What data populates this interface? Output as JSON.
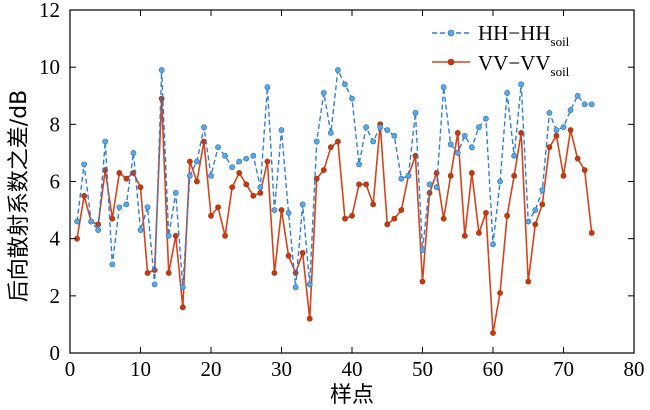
{
  "chart_data": {
    "type": "line",
    "xlabel": "样点",
    "ylabel": "后向散射系数之差/dB",
    "xlim": [
      0,
      80
    ],
    "ylim": [
      0,
      12
    ],
    "xticks": [
      0,
      10,
      20,
      30,
      40,
      50,
      60,
      70,
      80
    ],
    "yticks": [
      0,
      2,
      4,
      6,
      8,
      10,
      12
    ],
    "grid": false,
    "legend_position": "top-right",
    "x": [
      1,
      2,
      3,
      4,
      5,
      6,
      7,
      8,
      9,
      10,
      11,
      12,
      13,
      14,
      15,
      16,
      17,
      18,
      19,
      20,
      21,
      22,
      23,
      24,
      25,
      26,
      27,
      28,
      29,
      30,
      31,
      32,
      33,
      34,
      35,
      36,
      37,
      38,
      39,
      40,
      41,
      42,
      43,
      44,
      45,
      46,
      47,
      48,
      49,
      50,
      51,
      52,
      53,
      54,
      55,
      56,
      57,
      58,
      59,
      60,
      61,
      62,
      63,
      64,
      65,
      66,
      67,
      68,
      69,
      70,
      71,
      72,
      73,
      74
    ],
    "series": [
      {
        "name": "HH−HH",
        "name_sub": "soil",
        "color": "#2f7fd6",
        "marker_color": "#5aa9e0",
        "style": "dashed",
        "values": [
          4.6,
          6.6,
          4.6,
          4.3,
          7.4,
          3.1,
          5.1,
          5.2,
          7.0,
          4.3,
          5.1,
          2.4,
          9.9,
          4.1,
          5.6,
          2.3,
          6.2,
          6.7,
          7.9,
          6.2,
          7.2,
          6.9,
          6.5,
          6.7,
          6.8,
          6.9,
          5.8,
          9.3,
          5.0,
          7.8,
          4.9,
          2.3,
          5.2,
          2.4,
          7.4,
          9.1,
          7.7,
          9.9,
          9.4,
          8.9,
          6.6,
          7.9,
          7.4,
          7.9,
          7.8,
          7.6,
          6.1,
          6.2,
          8.4,
          3.6,
          5.9,
          5.8,
          9.3,
          7.3,
          7.0,
          7.6,
          7.2,
          7.9,
          8.2,
          3.8,
          6.0,
          9.1,
          6.9,
          9.4,
          4.6,
          5.0,
          5.7,
          8.4,
          7.8,
          7.9,
          8.5,
          9.0,
          8.7,
          8.7
        ]
      },
      {
        "name": "VV−VV",
        "name_sub": "soil",
        "color": "#d4441c",
        "marker_color": "#c23a10",
        "style": "solid",
        "values": [
          4.0,
          5.5,
          4.6,
          4.5,
          6.4,
          4.7,
          6.3,
          6.1,
          6.3,
          5.8,
          2.8,
          2.9,
          8.9,
          2.8,
          4.1,
          1.6,
          6.7,
          6.0,
          7.4,
          4.8,
          5.1,
          4.1,
          5.8,
          6.3,
          5.9,
          5.5,
          5.6,
          6.7,
          2.8,
          5.0,
          3.4,
          2.8,
          3.5,
          1.2,
          6.1,
          6.4,
          7.2,
          7.4,
          4.7,
          4.8,
          5.9,
          5.9,
          5.2,
          8.0,
          4.5,
          4.7,
          5.0,
          6.2,
          6.9,
          2.5,
          5.6,
          6.3,
          4.7,
          6.2,
          7.7,
          4.1,
          6.3,
          4.2,
          4.9,
          0.7,
          2.1,
          4.8,
          6.2,
          7.7,
          2.5,
          4.5,
          5.2,
          7.2,
          7.6,
          6.2,
          7.8,
          6.8,
          6.4,
          4.2
        ]
      }
    ]
  }
}
